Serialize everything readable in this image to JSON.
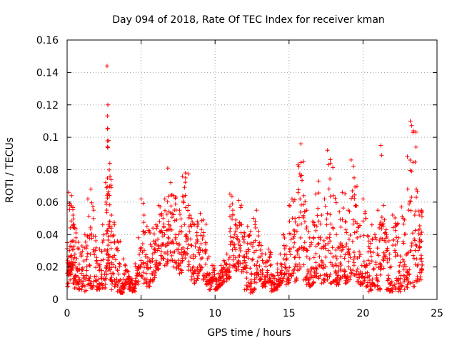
{
  "chart_data": {
    "type": "scatter",
    "title": "Day 094 of 2018, Rate Of TEC Index for receiver kman",
    "xlabel": "GPS time / hours",
    "ylabel": "ROTI / TECUs",
    "xlim": [
      0,
      25
    ],
    "ylim": [
      0,
      0.16
    ],
    "x_ticks": [
      0,
      5,
      10,
      15,
      20,
      25
    ],
    "x_tick_labels": [
      "0",
      "5",
      "10",
      "15",
      "20",
      "25"
    ],
    "y_ticks": [
      0,
      0.02,
      0.04,
      0.06,
      0.08,
      0.1,
      0.12,
      0.14,
      0.16
    ],
    "y_tick_labels": [
      "0",
      "0.02",
      "0.04",
      "0.06",
      "0.08",
      "0.1",
      "0.12",
      "0.14",
      "0.16"
    ],
    "grid": true,
    "marker": "plus",
    "color": "#ff0000",
    "series": [
      {
        "name": "ROTI",
        "x": [
          0.0,
          0.1,
          0.2,
          0.3,
          0.4,
          0.5,
          0.6,
          0.8,
          1.0,
          1.2,
          1.4,
          1.6,
          1.8,
          2.0,
          2.2,
          2.4,
          2.6,
          2.7,
          2.75,
          2.8,
          2.9,
          3.0,
          3.2,
          3.4,
          3.6,
          3.8,
          4.0,
          4.2,
          4.4,
          4.6,
          4.8,
          5.0,
          5.2,
          5.4,
          5.6,
          5.8,
          6.0,
          6.2,
          6.4,
          6.6,
          6.8,
          7.0,
          7.2,
          7.4,
          7.6,
          7.8,
          8.0,
          8.2,
          8.4,
          8.6,
          8.8,
          9.0,
          9.2,
          9.4,
          9.6,
          9.8,
          10.0,
          10.2,
          10.4,
          10.6,
          10.8,
          11.0,
          11.2,
          11.4,
          11.6,
          11.8,
          12.0,
          12.2,
          12.4,
          12.6,
          12.8,
          13.0,
          13.2,
          13.4,
          13.6,
          13.8,
          14.0,
          14.2,
          14.4,
          14.6,
          14.8,
          15.0,
          15.2,
          15.4,
          15.6,
          15.8,
          16.0,
          16.2,
          16.4,
          16.6,
          16.8,
          17.0,
          17.2,
          17.4,
          17.6,
          17.8,
          18.0,
          18.2,
          18.4,
          18.6,
          18.8,
          19.0,
          19.2,
          19.4,
          19.6,
          19.8,
          20.0,
          20.2,
          20.4,
          20.6,
          20.8,
          21.0,
          21.2,
          21.4,
          21.6,
          21.8,
          22.0,
          22.2,
          22.4,
          22.6,
          22.8,
          23.0,
          23.2,
          23.4,
          23.6,
          23.8,
          23.95
        ],
        "y": [
          0.035,
          0.066,
          0.058,
          0.064,
          0.052,
          0.044,
          0.038,
          0.031,
          0.033,
          0.04,
          0.062,
          0.068,
          0.055,
          0.024,
          0.031,
          0.046,
          0.072,
          0.144,
          0.12,
          0.098,
          0.076,
          0.052,
          0.046,
          0.036,
          0.012,
          0.025,
          0.018,
          0.014,
          0.01,
          0.022,
          0.038,
          0.062,
          0.052,
          0.045,
          0.041,
          0.044,
          0.046,
          0.058,
          0.053,
          0.062,
          0.081,
          0.072,
          0.064,
          0.049,
          0.055,
          0.076,
          0.078,
          0.058,
          0.05,
          0.046,
          0.048,
          0.053,
          0.049,
          0.03,
          0.016,
          0.021,
          0.013,
          0.016,
          0.021,
          0.024,
          0.028,
          0.065,
          0.052,
          0.049,
          0.061,
          0.046,
          0.039,
          0.045,
          0.042,
          0.05,
          0.055,
          0.035,
          0.024,
          0.028,
          0.031,
          0.015,
          0.013,
          0.022,
          0.028,
          0.04,
          0.033,
          0.058,
          0.062,
          0.05,
          0.083,
          0.096,
          0.064,
          0.055,
          0.038,
          0.048,
          0.065,
          0.073,
          0.052,
          0.062,
          0.092,
          0.084,
          0.064,
          0.04,
          0.054,
          0.066,
          0.048,
          0.055,
          0.086,
          0.075,
          0.047,
          0.039,
          0.062,
          0.05,
          0.036,
          0.046,
          0.04,
          0.055,
          0.095,
          0.058,
          0.04,
          0.028,
          0.052,
          0.047,
          0.038,
          0.057,
          0.049,
          0.088,
          0.11,
          0.104,
          0.068,
          0.052,
          0.055
        ],
        "baseline_y": [
          0.008,
          0.015,
          0.012,
          0.018,
          0.01,
          0.007,
          0.009,
          0.006,
          0.008,
          0.005,
          0.009,
          0.007,
          0.011,
          0.006,
          0.009,
          0.007,
          0.013,
          0.02,
          0.022,
          0.018,
          0.012,
          0.006,
          0.008,
          0.005,
          0.004,
          0.007,
          0.009,
          0.006,
          0.005,
          0.009,
          0.011,
          0.014,
          0.01,
          0.008,
          0.011,
          0.012,
          0.018,
          0.022,
          0.025,
          0.021,
          0.028,
          0.024,
          0.02,
          0.019,
          0.016,
          0.024,
          0.028,
          0.018,
          0.012,
          0.01,
          0.013,
          0.018,
          0.012,
          0.009,
          0.006,
          0.011,
          0.006,
          0.008,
          0.009,
          0.011,
          0.013,
          0.026,
          0.02,
          0.018,
          0.022,
          0.017,
          0.006,
          0.008,
          0.004,
          0.006,
          0.015,
          0.012,
          0.008,
          0.01,
          0.011,
          0.005,
          0.006,
          0.008,
          0.01,
          0.013,
          0.009,
          0.012,
          0.016,
          0.011,
          0.018,
          0.02,
          0.012,
          0.009,
          0.008,
          0.01,
          0.014,
          0.013,
          0.01,
          0.012,
          0.014,
          0.01,
          0.011,
          0.009,
          0.012,
          0.014,
          0.01,
          0.012,
          0.016,
          0.015,
          0.011,
          0.009,
          0.01,
          0.008,
          0.005,
          0.009,
          0.008,
          0.006,
          0.019,
          0.024,
          0.006,
          0.005,
          0.007,
          0.006,
          0.005,
          0.008,
          0.006,
          0.009,
          0.01,
          0.008,
          0.011,
          0.012,
          0.018
        ]
      }
    ]
  }
}
